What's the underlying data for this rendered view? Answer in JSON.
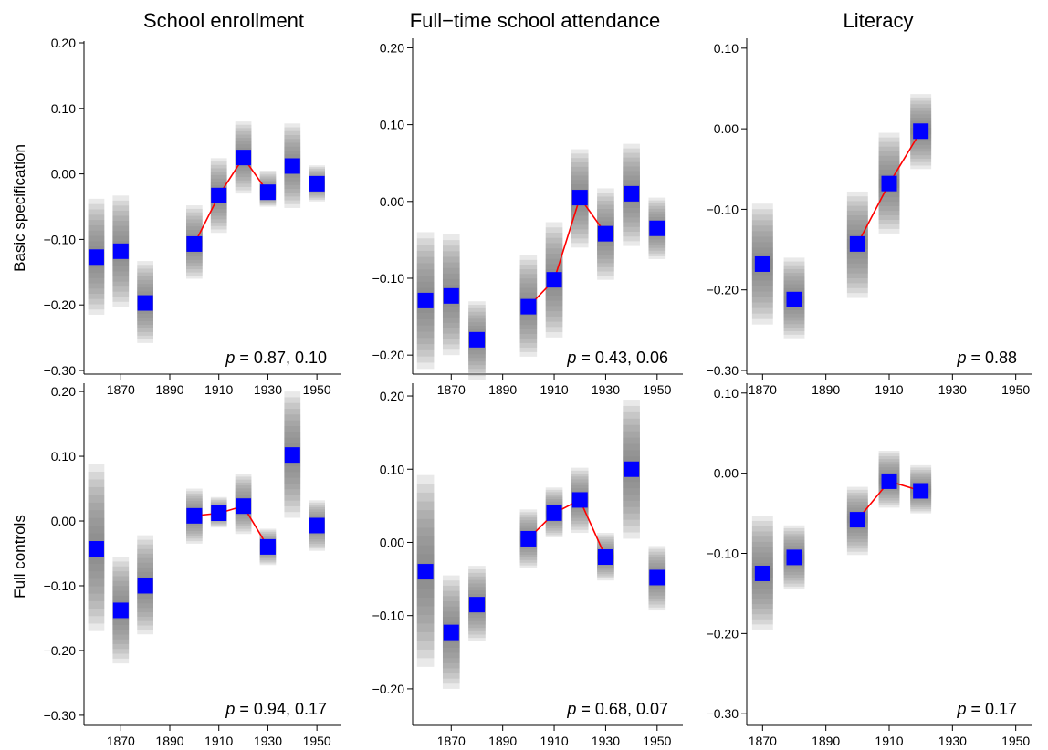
{
  "column_titles": [
    "School enrollment",
    "Full−time school attendance",
    "Literacy"
  ],
  "row_labels": [
    "Basic specification",
    "Full controls"
  ],
  "colors": {
    "point": "#0000ff",
    "line": "#ff0000",
    "band": "#7f7f7f"
  },
  "chart_data": [
    {
      "type": "scatter",
      "panel": "School enrollment / Basic specification",
      "ylim": [
        -0.3,
        0.2
      ],
      "yticks": [
        0.2,
        0.1,
        0.0,
        -0.1,
        -0.2,
        -0.3
      ],
      "ytick_labels": [
        "0.20",
        "0.10",
        "0.00",
        "−0.10",
        "−0.20",
        "−0.30"
      ],
      "xlim": [
        1855,
        1960
      ],
      "xticks": [
        1870,
        1890,
        1910,
        1930,
        1950
      ],
      "x": [
        1860,
        1870,
        1880,
        1900,
        1910,
        1920,
        1930,
        1940,
        1950
      ],
      "y": [
        -0.127,
        -0.118,
        -0.197,
        -0.107,
        -0.033,
        0.025,
        -0.028,
        0.012,
        -0.015
      ],
      "ci_low": [
        -0.215,
        -0.203,
        -0.258,
        -0.16,
        -0.09,
        -0.03,
        -0.05,
        -0.052,
        -0.042
      ],
      "ci_high": [
        -0.038,
        -0.033,
        -0.133,
        -0.048,
        0.024,
        0.08,
        0.005,
        0.077,
        0.013
      ],
      "line_x": [
        1900,
        1910,
        1920,
        1930
      ],
      "line_y": [
        -0.107,
        -0.033,
        0.025,
        -0.028
      ],
      "annotation": {
        "italic": "p",
        "text": " = 0.87, 0.10"
      }
    },
    {
      "type": "scatter",
      "panel": "Full-time school attendance / Basic specification",
      "ylim": [
        -0.22,
        0.21
      ],
      "yticks": [
        0.2,
        0.1,
        0.0,
        -0.1,
        -0.2
      ],
      "ytick_labels": [
        "0.20",
        "0.10",
        "0.00",
        "−0.10",
        "−0.20"
      ],
      "xlim": [
        1855,
        1960
      ],
      "xticks": [
        1870,
        1890,
        1910,
        1930,
        1950
      ],
      "x": [
        1860,
        1870,
        1880,
        1900,
        1910,
        1920,
        1930,
        1940,
        1950
      ],
      "y": [
        -0.129,
        -0.123,
        -0.18,
        -0.137,
        -0.102,
        0.005,
        -0.042,
        0.01,
        -0.035
      ],
      "ci_low": [
        -0.218,
        -0.2,
        -0.232,
        -0.202,
        -0.177,
        -0.06,
        -0.102,
        -0.058,
        -0.075
      ],
      "ci_high": [
        -0.04,
        -0.043,
        -0.13,
        -0.07,
        -0.027,
        0.068,
        0.017,
        0.075,
        0.005
      ],
      "line_x": [
        1900,
        1910,
        1920,
        1930
      ],
      "line_y": [
        -0.137,
        -0.102,
        0.005,
        -0.042
      ],
      "annotation": {
        "italic": "p",
        "text": " = 0.43, 0.06"
      }
    },
    {
      "type": "scatter",
      "panel": "Literacy / Basic specification",
      "ylim": [
        -0.3,
        0.11
      ],
      "yticks": [
        0.1,
        0.0,
        -0.1,
        -0.2,
        -0.3
      ],
      "ytick_labels": [
        "0.10",
        "0.00",
        "−0.10",
        "−0.20",
        "−0.30"
      ],
      "xlim": [
        1865,
        1955
      ],
      "xticks": [
        1870,
        1890,
        1910,
        1930,
        1950
      ],
      "x": [
        1870,
        1880,
        1900,
        1910,
        1920
      ],
      "y": [
        -0.168,
        -0.212,
        -0.143,
        -0.068,
        -0.003
      ],
      "ci_low": [
        -0.243,
        -0.26,
        -0.21,
        -0.13,
        -0.05
      ],
      "ci_high": [
        -0.093,
        -0.16,
        -0.078,
        -0.005,
        0.043
      ],
      "line_x": [
        1900,
        1910,
        1920
      ],
      "line_y": [
        -0.143,
        -0.068,
        -0.003
      ],
      "annotation": {
        "italic": "p",
        "text": " = 0.88"
      }
    },
    {
      "type": "scatter",
      "panel": "School enrollment / Full controls",
      "ylim": [
        -0.31,
        0.21
      ],
      "yticks": [
        0.2,
        0.1,
        0.0,
        -0.1,
        -0.2,
        -0.3
      ],
      "ytick_labels": [
        "0.20",
        "0.10",
        "0.00",
        "−0.10",
        "−0.20",
        "−0.30"
      ],
      "xlim": [
        1855,
        1960
      ],
      "xticks": [
        1870,
        1890,
        1910,
        1930,
        1950
      ],
      "x": [
        1860,
        1870,
        1880,
        1900,
        1910,
        1920,
        1930,
        1940,
        1950
      ],
      "y": [
        -0.043,
        -0.138,
        -0.1,
        0.008,
        0.012,
        0.023,
        -0.04,
        0.102,
        -0.007
      ],
      "ci_low": [
        -0.17,
        -0.22,
        -0.175,
        -0.035,
        -0.01,
        -0.02,
        -0.068,
        0.005,
        -0.046
      ],
      "ci_high": [
        0.088,
        -0.055,
        -0.022,
        0.05,
        0.037,
        0.073,
        -0.012,
        0.2,
        0.032
      ],
      "line_x": [
        1900,
        1910,
        1920,
        1930
      ],
      "line_y": [
        0.008,
        0.012,
        0.023,
        -0.04
      ],
      "annotation": {
        "italic": "p",
        "text": " = 0.94, 0.17"
      }
    },
    {
      "type": "scatter",
      "panel": "Full-time school attendance / Full controls",
      "ylim": [
        -0.245,
        0.215
      ],
      "yticks": [
        0.2,
        0.1,
        0.0,
        -0.1,
        -0.2
      ],
      "ytick_labels": [
        "0.20",
        "0.10",
        "0.00",
        "−0.10",
        "−0.20"
      ],
      "xlim": [
        1855,
        1960
      ],
      "xticks": [
        1870,
        1890,
        1910,
        1930,
        1950
      ],
      "x": [
        1860,
        1870,
        1880,
        1900,
        1910,
        1920,
        1930,
        1940,
        1950
      ],
      "y": [
        -0.04,
        -0.123,
        -0.085,
        0.005,
        0.04,
        0.058,
        -0.02,
        0.1,
        -0.048
      ],
      "ci_low": [
        -0.17,
        -0.2,
        -0.135,
        -0.035,
        0.007,
        0.013,
        -0.052,
        0.005,
        -0.093
      ],
      "ci_high": [
        0.092,
        -0.045,
        -0.032,
        0.045,
        0.075,
        0.102,
        0.013,
        0.195,
        -0.005
      ],
      "line_x": [
        1900,
        1910,
        1920,
        1930
      ],
      "line_y": [
        0.005,
        0.04,
        0.058,
        -0.02
      ],
      "annotation": {
        "italic": "p",
        "text": " = 0.68, 0.07"
      }
    },
    {
      "type": "scatter",
      "panel": "Literacy / Full controls",
      "ylim": [
        -0.31,
        0.11
      ],
      "yticks": [
        0.1,
        0.0,
        -0.1,
        -0.2,
        -0.3
      ],
      "ytick_labels": [
        "0.10",
        "0.00",
        "−0.10",
        "−0.20",
        "−0.30"
      ],
      "xlim": [
        1865,
        1955
      ],
      "xticks": [
        1870,
        1890,
        1910,
        1930,
        1950
      ],
      "x": [
        1870,
        1880,
        1900,
        1910,
        1920
      ],
      "y": [
        -0.125,
        -0.105,
        -0.058,
        -0.01,
        -0.022
      ],
      "ci_low": [
        -0.195,
        -0.145,
        -0.102,
        -0.043,
        -0.05
      ],
      "ci_high": [
        -0.053,
        -0.065,
        -0.017,
        0.028,
        0.01
      ],
      "line_x": [
        1900,
        1910,
        1920
      ],
      "line_y": [
        -0.058,
        -0.01,
        -0.022
      ],
      "annotation": {
        "italic": "p",
        "text": " = 0.17"
      }
    }
  ]
}
